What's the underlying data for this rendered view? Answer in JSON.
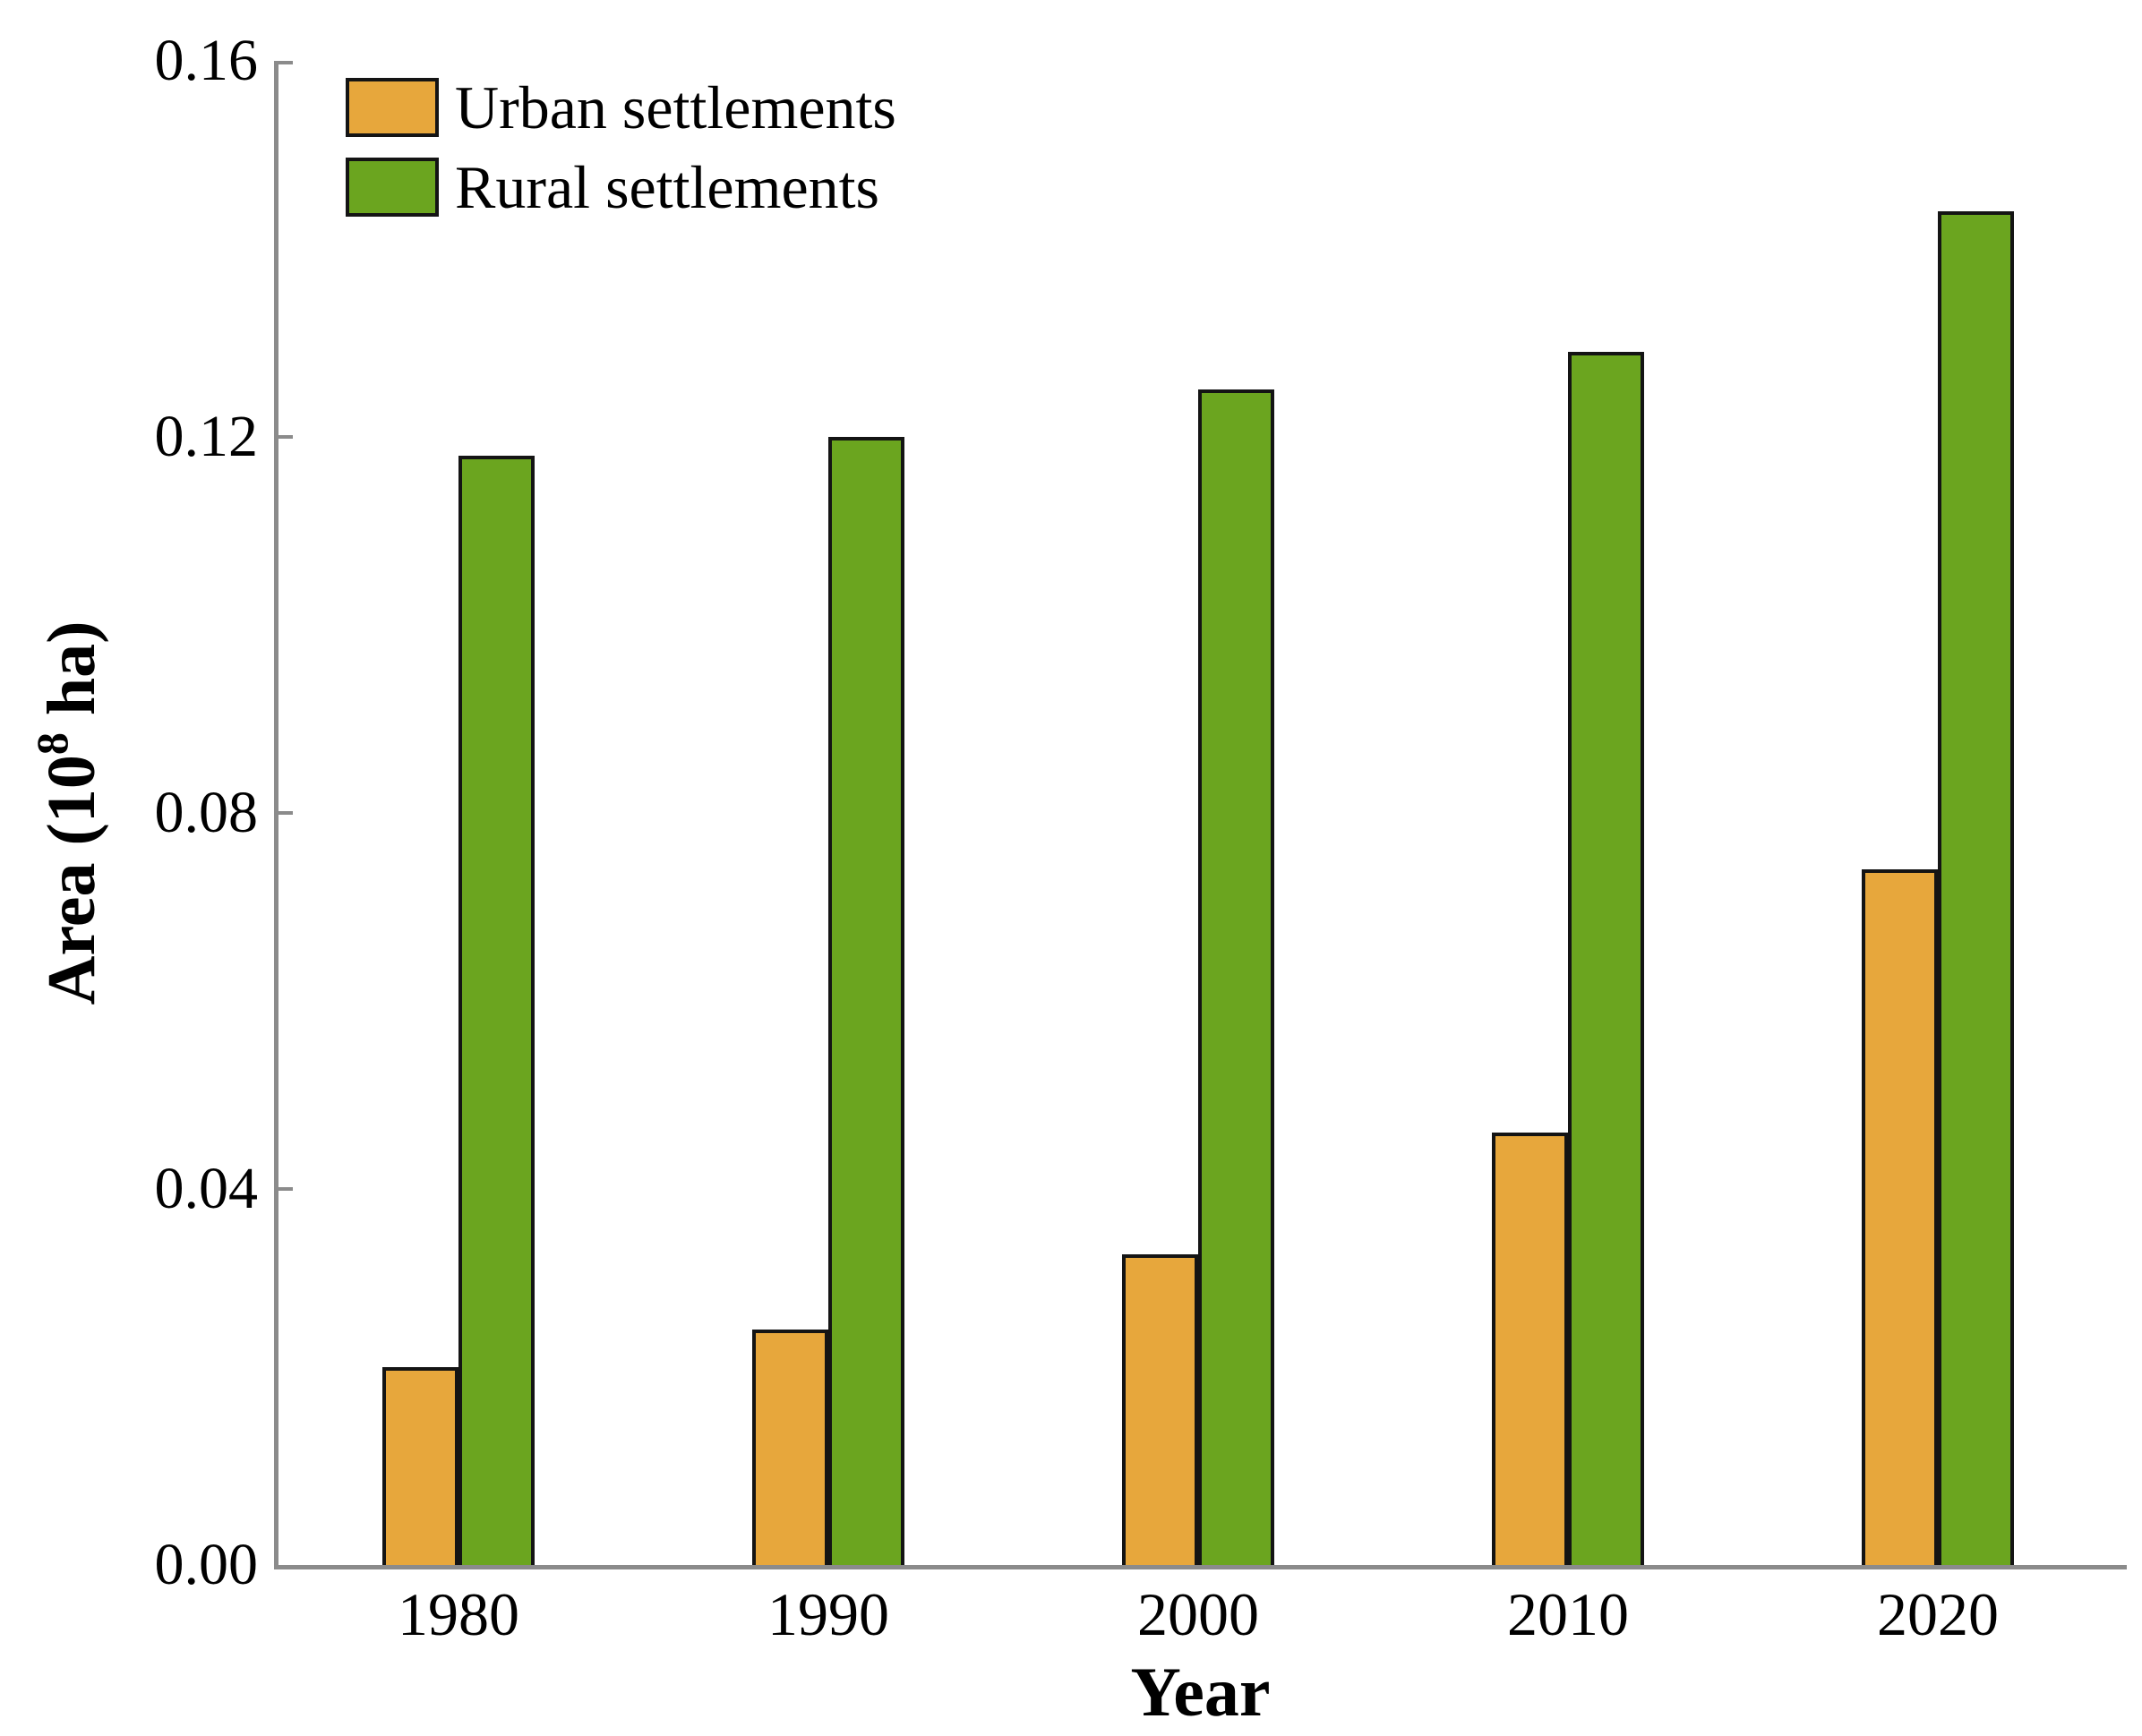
{
  "chart_data": {
    "type": "bar",
    "title": "",
    "categories": [
      "1980",
      "1990",
      "2000",
      "2010",
      "2020"
    ],
    "series": [
      {
        "name": "Urban settlements",
        "color": "#E7A73C",
        "values": [
          0.021,
          0.025,
          0.033,
          0.046,
          0.074
        ]
      },
      {
        "name": "Rural settlements",
        "color": "#6BA51F",
        "values": [
          0.118,
          0.12,
          0.125,
          0.129,
          0.144
        ]
      }
    ],
    "xlabel": "Year",
    "ylabel_prefix": "Area (10",
    "ylabel_sup": "8",
    "ylabel_suffix": " ha)",
    "ylim": [
      0,
      0.16
    ],
    "yticks": [
      "0.00",
      "0.04",
      "0.08",
      "0.12",
      "0.16"
    ],
    "grid": false,
    "legend_position": "top-left-inside",
    "colors": {
      "axis": "#8b8b8b",
      "bar_border": "#141414",
      "text": "#000000",
      "background": "#ffffff"
    }
  }
}
